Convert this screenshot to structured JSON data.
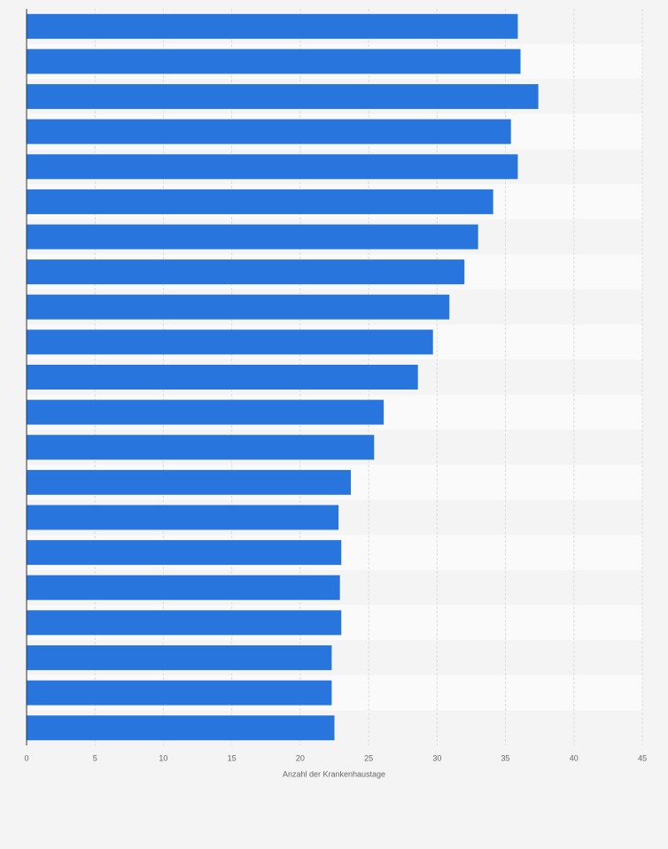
{
  "chart_data": {
    "type": "barh",
    "categories": [
      null,
      null,
      null,
      null,
      null,
      null,
      null,
      null,
      null,
      null,
      null,
      null,
      null,
      null,
      null,
      null,
      null,
      null,
      null,
      null,
      null
    ],
    "values": [
      35.9,
      36.1,
      37.4,
      35.4,
      35.9,
      34.1,
      33.0,
      32.0,
      30.9,
      29.7,
      28.6,
      26.1,
      25.4,
      23.7,
      22.8,
      23.0,
      22.9,
      23.0,
      22.3,
      22.3,
      22.5
    ],
    "color": "#2876dd",
    "x_label": "Anzahl der Krankenhaustage",
    "xlim": [
      0,
      45
    ],
    "xticks": [
      0,
      5,
      10,
      15,
      20,
      25,
      30,
      35,
      40,
      45
    ],
    "grid": true
  }
}
